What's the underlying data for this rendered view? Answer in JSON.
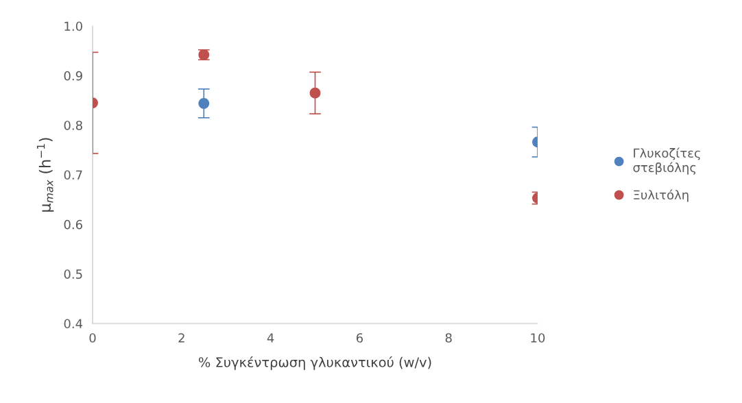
{
  "chart_data": {
    "type": "scatter",
    "xlabel": "% Συγκέντρωση γλυκαντικού (w/v)",
    "ylabel": "μ$_{max}$ (h$^{−1}$)",
    "xlim": [
      0,
      10
    ],
    "xticks": [
      0,
      2,
      4,
      6,
      8,
      10
    ],
    "ylim": [
      0.4,
      1.0
    ],
    "yticks": [
      0.4,
      0.5,
      0.6,
      0.7,
      0.8,
      0.9,
      {
        "value": 1.0,
        "label": "1.0"
      }
    ],
    "grid": false,
    "legend": "right",
    "marker": "circle",
    "series": [
      {
        "name": "Γλυκοζίτες\nστεβιόλης",
        "color": "#4f81bd",
        "x": [
          2.5,
          5,
          10
        ],
        "values": [
          0.844,
          null,
          0.766
        ],
        "errors": [
          0.029,
          null,
          0.03
        ]
      },
      {
        "name": "Ξυλιτόλη",
        "color": "#c0504d",
        "x": [
          0,
          2.5,
          5,
          10
        ],
        "values": [
          0.845,
          0.942,
          0.865,
          0.653
        ],
        "errors": [
          0.102,
          0.01,
          0.042,
          0.012
        ]
      }
    ]
  }
}
